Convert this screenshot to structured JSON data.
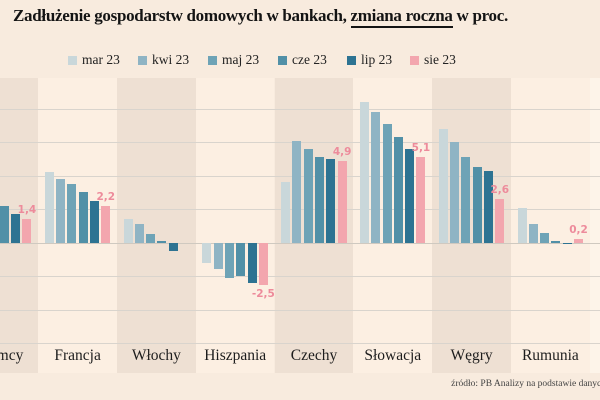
{
  "title": {
    "prefix": "Zadłużenie gospodarstw domowych w bankach, ",
    "underlined": "zmiana roczna",
    "suffix": " w proc."
  },
  "source": "źródło: PB Analizy na podstawie danych",
  "chart_data": {
    "type": "bar",
    "title": "Zadłużenie gospodarstw domowych w bankach, zmiana roczna w proc.",
    "categories": [
      "Niemcy",
      "Francja",
      "Włochy",
      "Hiszpania",
      "Czechy",
      "Słowacja",
      "Węgry",
      "Rumunia"
    ],
    "series": [
      {
        "name": "mar 23",
        "color": "#c9d7da",
        "values": [
          null,
          4.2,
          1.4,
          -1.2,
          3.6,
          8.4,
          6.8,
          2.1
        ]
      },
      {
        "name": "kwi 23",
        "color": "#8fb4c4",
        "values": [
          null,
          3.8,
          1.1,
          -1.6,
          6.1,
          7.8,
          6.0,
          1.1
        ]
      },
      {
        "name": "maj 23",
        "color": "#6ea3b6",
        "values": [
          null,
          3.5,
          0.5,
          -2.1,
          5.6,
          7.1,
          5.1,
          0.6
        ]
      },
      {
        "name": "cze 23",
        "color": "#5190a7",
        "values": [
          2.2,
          3.0,
          0.1,
          -2.0,
          5.1,
          6.3,
          4.5,
          0.1
        ]
      },
      {
        "name": "lip 23",
        "color": "#2d7392",
        "values": [
          1.7,
          2.5,
          -0.5,
          -2.4,
          5.0,
          5.6,
          4.3,
          -0.1
        ]
      },
      {
        "name": "sie 23",
        "color": "#f3a6ae",
        "values": [
          1.4,
          2.2,
          0.0,
          -2.5,
          4.9,
          5.1,
          2.6,
          0.2
        ]
      }
    ],
    "value_labels": [
      "1,4",
      "2,2",
      null,
      "-2,5",
      "4,9",
      "5,1",
      "2,6",
      "0,2"
    ],
    "xlabel": "",
    "ylabel": "",
    "ylim": [
      -6.8,
      9.8
    ],
    "grid_values": [
      8,
      6,
      4,
      2,
      0,
      -2,
      -4,
      -6
    ],
    "grid_on": true,
    "legend_position": "top",
    "colors": {
      "value_label": "#ed8b9b",
      "band_dark": "#eee0d3",
      "band_light": "#fcefe2",
      "gridline": "#d9d4cd",
      "zero_line": "#cfc9c0",
      "edge_strip": "#fdf4e9"
    }
  }
}
